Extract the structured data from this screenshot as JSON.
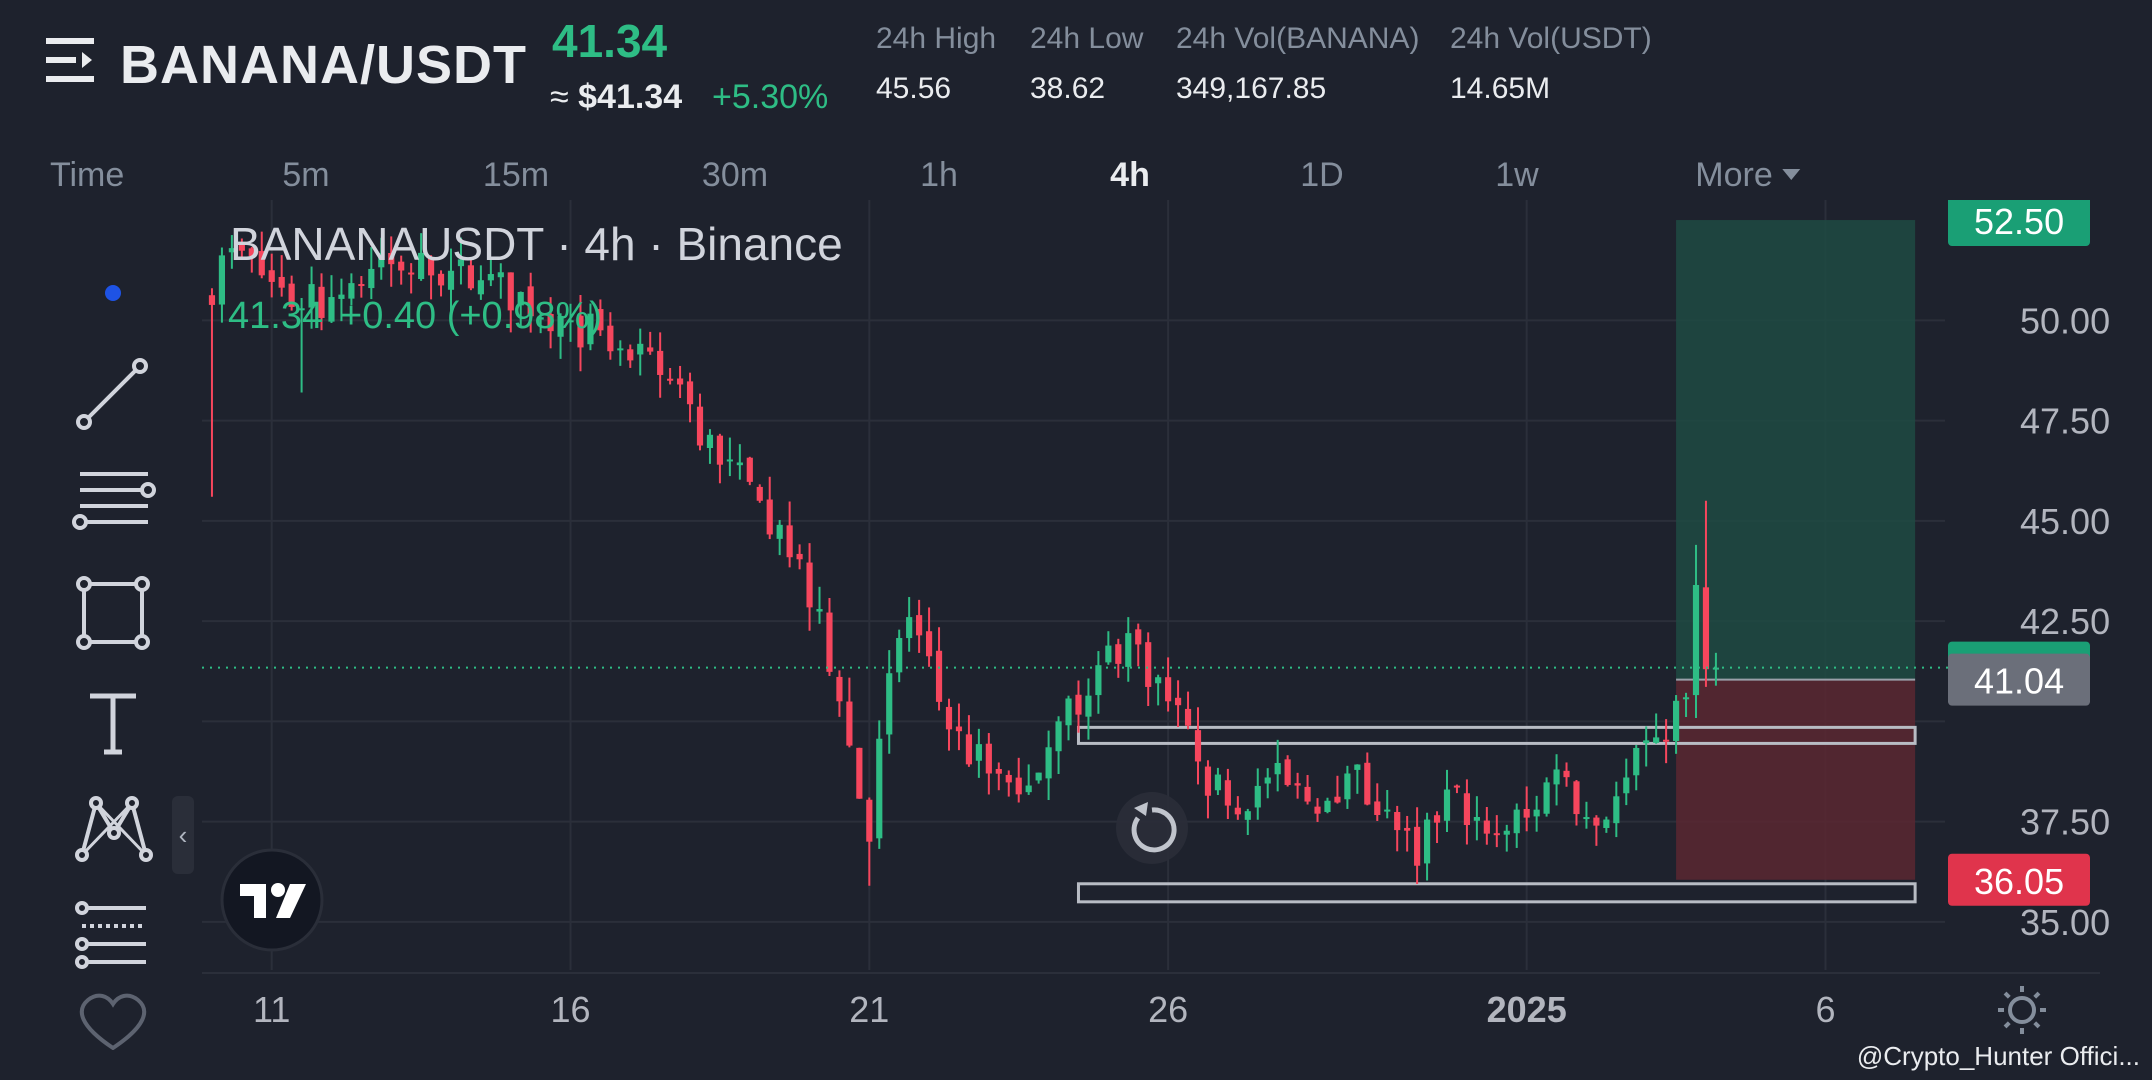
{
  "header": {
    "pair": "BANANA/USDT",
    "price": "41.34",
    "approx_label": "≈",
    "approx_value": "$41.34",
    "change_pct": "+5.30%",
    "stats": [
      {
        "label": "24h High",
        "value": "45.56"
      },
      {
        "label": "24h Low",
        "value": "38.62"
      },
      {
        "label": "24h Vol(BANANA)",
        "value": "349,167.85"
      },
      {
        "label": "24h Vol(USDT)",
        "value": "14.65M"
      }
    ]
  },
  "intervals": {
    "time_label": "Time",
    "items": [
      "5m",
      "15m",
      "30m",
      "1h",
      "4h",
      "1D",
      "1w"
    ],
    "active": "4h",
    "more_label": "More"
  },
  "colors": {
    "up": "#2ebd85",
    "down": "#f6465d",
    "background": "#1e222d",
    "grid": "#2b2f3a",
    "text": "#d1d4dc",
    "accent_blue": "#1e53e5"
  },
  "toolbar": {
    "icons": [
      "dot-cursor-icon",
      "trend-line-icon",
      "horizontal-lines-icon",
      "rectangle-icon",
      "text-icon",
      "pattern-icon",
      "fib-lines-icon",
      "heart-icon"
    ]
  },
  "chart_data": {
    "type": "candlestick",
    "symbol_title": "BANANAUSDT · 4h · Binance",
    "legend_price": "41.34",
    "legend_change": "+0.40 (+0.98%)",
    "y_ticks": [
      "50.00",
      "47.50",
      "45.00",
      "42.50",
      "37.50",
      "35.00"
    ],
    "ylim": [
      33.8,
      53.0
    ],
    "x_ticks": [
      {
        "label": "11",
        "date": "2024-12-11"
      },
      {
        "label": "16",
        "date": "2024-12-16"
      },
      {
        "label": "21",
        "date": "2024-12-21"
      },
      {
        "label": "26",
        "date": "2024-12-26"
      },
      {
        "label": "2025",
        "date": "2025-01-01"
      },
      {
        "label": "6",
        "date": "2025-01-06"
      }
    ],
    "x_range": [
      "2024-12-09T20:00",
      "2025-01-08T00:00"
    ],
    "current_price": 41.34,
    "price_tags": [
      {
        "value": "52.50",
        "kind": "target"
      },
      {
        "value": "41.34",
        "kind": "last"
      },
      {
        "value": "41.04",
        "kind": "entry"
      },
      {
        "value": "36.05",
        "kind": "stop"
      }
    ],
    "position_tool": {
      "start": "2025-01-03T12:00",
      "end": "2025-01-07T12:00",
      "entry": 41.04,
      "target": 52.5,
      "stop": 36.05
    },
    "zones": [
      {
        "start": "2024-12-24T12:00",
        "end": "2025-01-07T12:00",
        "low": 39.45,
        "high": 39.85
      },
      {
        "start": "2024-12-24T12:00",
        "end": "2025-01-07T12:00",
        "low": 35.5,
        "high": 35.95
      }
    ],
    "ohlc_anchors": [
      {
        "t": "2024-12-09T20:00",
        "c": 50.5,
        "lo": 45.6
      },
      {
        "t": "2024-12-10T08:00",
        "c": 51.8
      },
      {
        "t": "2024-12-11T12:00",
        "c": 50.3,
        "lo": 48.2
      },
      {
        "t": "2024-12-13T00:00",
        "c": 51.4
      },
      {
        "t": "2024-12-14T12:00",
        "c": 51.0
      },
      {
        "t": "2024-12-16T00:00",
        "c": 50.0
      },
      {
        "t": "2024-12-17T00:00",
        "c": 49.0
      },
      {
        "t": "2024-12-17T20:00",
        "c": 48.4
      },
      {
        "t": "2024-12-18T12:00",
        "c": 46.4
      },
      {
        "t": "2024-12-19T04:00",
        "c": 45.5
      },
      {
        "t": "2024-12-19T12:00",
        "c": 44.9
      },
      {
        "t": "2024-12-20T04:00",
        "c": 42.8
      },
      {
        "t": "2024-12-20T12:00",
        "c": 40.5
      },
      {
        "t": "2024-12-21T00:00",
        "c": 37.0,
        "lo": 35.9
      },
      {
        "t": "2024-12-21T08:00",
        "c": 41.2
      },
      {
        "t": "2024-12-21T16:00",
        "c": 42.6,
        "hi": 43.1
      },
      {
        "t": "2024-12-22T08:00",
        "c": 39.8
      },
      {
        "t": "2024-12-23T00:00",
        "c": 38.7
      },
      {
        "t": "2024-12-23T16:00",
        "c": 38.4
      },
      {
        "t": "2024-12-24T04:00",
        "c": 40.0
      },
      {
        "t": "2024-12-24T20:00",
        "c": 41.4
      },
      {
        "t": "2024-12-25T08:00",
        "c": 42.2,
        "hi": 42.6
      },
      {
        "t": "2024-12-26T00:00",
        "c": 40.5
      },
      {
        "t": "2024-12-26T12:00",
        "c": 39.0
      },
      {
        "t": "2024-12-27T00:00",
        "c": 37.9
      },
      {
        "t": "2024-12-27T16:00",
        "c": 38.6
      },
      {
        "t": "2024-12-28T08:00",
        "c": 38.0
      },
      {
        "t": "2024-12-29T00:00",
        "c": 38.7
      },
      {
        "t": "2024-12-29T16:00",
        "c": 37.8
      },
      {
        "t": "2024-12-30T04:00",
        "c": 36.4
      },
      {
        "t": "2024-12-30T16:00",
        "c": 38.3
      },
      {
        "t": "2024-12-31T08:00",
        "c": 37.2
      },
      {
        "t": "2025-01-01T00:00",
        "c": 37.6
      },
      {
        "t": "2025-01-01T12:00",
        "c": 38.8
      },
      {
        "t": "2025-01-02T04:00",
        "c": 37.4
      },
      {
        "t": "2025-01-02T16:00",
        "c": 38.6
      },
      {
        "t": "2025-01-03T04:00",
        "c": 39.6
      },
      {
        "t": "2025-01-03T16:00",
        "c": 40.6
      },
      {
        "t": "2025-01-03T20:00",
        "c": 43.4,
        "hi": 44.4
      },
      {
        "t": "2025-01-04T00:00",
        "c": 41.3,
        "hi": 45.5
      },
      {
        "t": "2025-01-04T04:00",
        "c": 41.34
      }
    ]
  },
  "watermark": "@Crypto_Hunter Offici..."
}
